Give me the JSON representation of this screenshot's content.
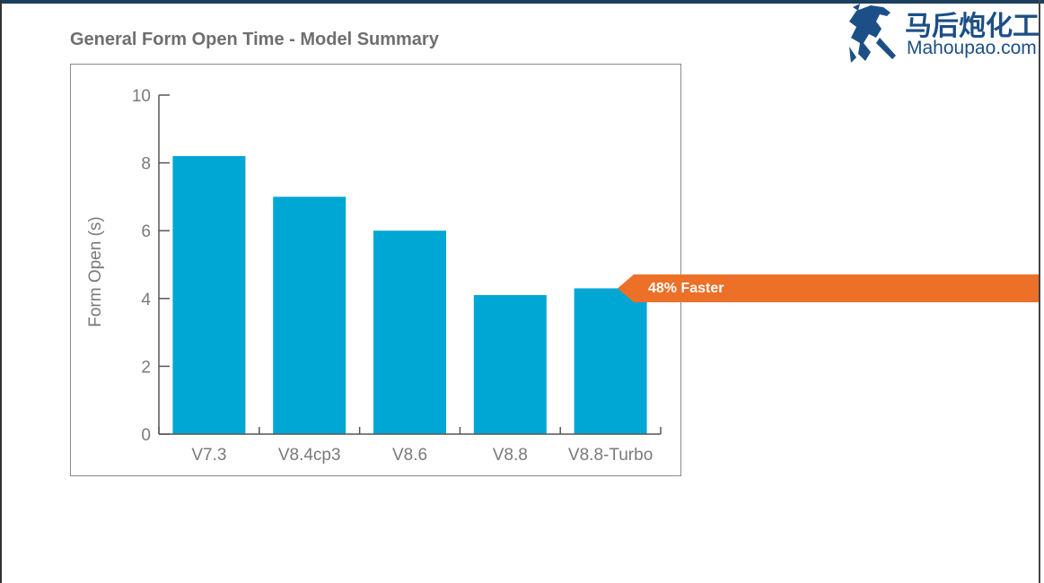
{
  "chart_data": {
    "type": "bar",
    "title": "General Form Open Time - Model Summary",
    "xlabel": "",
    "ylabel": "Form Open (s)",
    "categories": [
      "V7.3",
      "V8.4cp3",
      "V8.6",
      "V8.8",
      "V8.8-Turbo"
    ],
    "values": [
      8.2,
      7.0,
      6.0,
      4.1,
      4.3
    ],
    "ylim": [
      0,
      10
    ],
    "yticks": [
      0,
      2,
      4,
      6,
      8,
      10
    ],
    "grid": false,
    "bar_color": "#00a7d4",
    "annotation": {
      "text": "48% Faster",
      "target_category": "V8.8-Turbo",
      "color": "#ec7028"
    }
  },
  "watermark": {
    "cn_text": "马后炮化工",
    "en_text": "Mahoupao.com",
    "color": "#1b4f86"
  },
  "colors": {
    "top_rule": "#1d3f5e",
    "axis": "#555555",
    "tick_text": "#7a7a7a",
    "title_text": "#6f6f6f"
  }
}
